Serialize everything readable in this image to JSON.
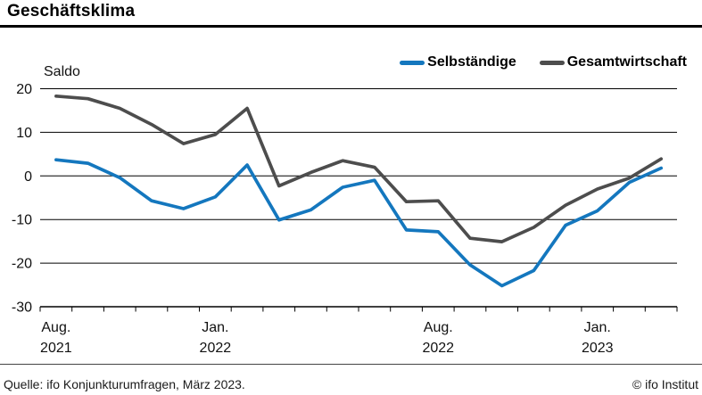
{
  "header": {
    "title": "Geschäftsklima"
  },
  "legend": [
    {
      "label": "Selbständige",
      "color": "#1477BE"
    },
    {
      "label": "Gesamtwirtschaft",
      "color": "#4D4D4D"
    }
  ],
  "chart_data": {
    "type": "line",
    "title": "Geschäftsklima",
    "ylabel": "Saldo",
    "xlabel": "",
    "ylim": [
      -30,
      20
    ],
    "yticks": [
      20,
      10,
      0,
      -10,
      -20,
      -30
    ],
    "grid": true,
    "legend_position": "top-right",
    "categories": [
      "Aug. 2021",
      "Sep. 2021",
      "Okt. 2021",
      "Nov. 2021",
      "Dez. 2021",
      "Jan. 2022",
      "Feb. 2022",
      "Mär. 2022",
      "Apr. 2022",
      "Mai 2022",
      "Jun. 2022",
      "Jul. 2022",
      "Aug. 2022",
      "Sep. 2022",
      "Okt. 2022",
      "Nov. 2022",
      "Dez. 2022",
      "Jan. 2023",
      "Feb. 2023",
      "Mär. 2023"
    ],
    "xtick_labels": [
      {
        "index": 0,
        "line1": "Aug.",
        "line2": "2021"
      },
      {
        "index": 5,
        "line1": "Jan.",
        "line2": "2022"
      },
      {
        "index": 12,
        "line1": "Aug.",
        "line2": "2022"
      },
      {
        "index": 17,
        "line1": "Jan.",
        "line2": "2023"
      }
    ],
    "series": [
      {
        "name": "Selbständige",
        "color": "#1477BE",
        "values": [
          3.7,
          2.9,
          -0.4,
          -5.7,
          -7.5,
          -4.8,
          2.5,
          -10.1,
          -7.8,
          -2.6,
          -1.0,
          -12.4,
          -12.8,
          -20.4,
          -25.2,
          -21.7,
          -11.3,
          -8.0,
          -1.5,
          1.8
        ]
      },
      {
        "name": "Gesamtwirtschaft",
        "color": "#4D4D4D",
        "values": [
          18.3,
          17.7,
          15.5,
          11.8,
          7.4,
          9.5,
          15.5,
          -2.3,
          0.8,
          3.5,
          2.0,
          -5.9,
          -5.7,
          -14.3,
          -15.1,
          -11.8,
          -6.7,
          -3.0,
          -0.5,
          3.9
        ]
      }
    ]
  },
  "footer": {
    "source": "Quelle: ifo Konjunkturumfragen, März 2023.",
    "copyright": "© ifo Institut"
  }
}
